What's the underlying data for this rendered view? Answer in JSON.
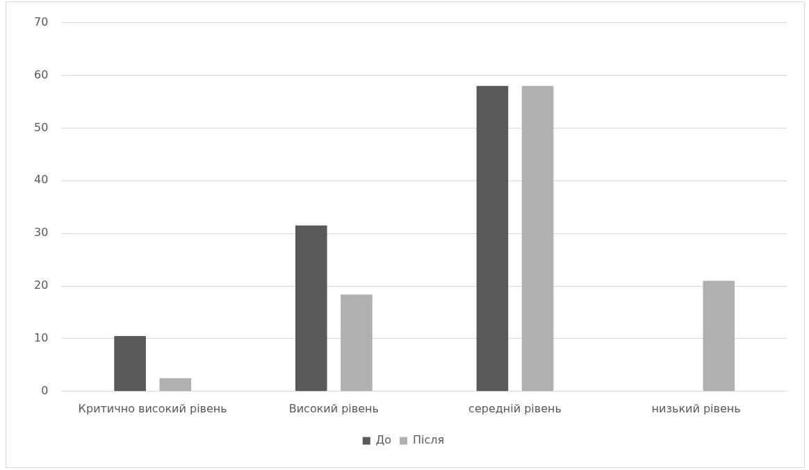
{
  "chart_data": {
    "type": "bar",
    "categories": [
      "Критично високий рівень",
      "Високий рівень",
      "середній рівень",
      "низький рівень"
    ],
    "series": [
      {
        "name": "До",
        "color": "#595959",
        "values": [
          10.5,
          31.5,
          58,
          0
        ]
      },
      {
        "name": "Після",
        "color": "#b0b0b0",
        "values": [
          2.5,
          18.4,
          58,
          21
        ]
      }
    ],
    "ylim": [
      0,
      70
    ],
    "yticks": [
      0,
      10,
      20,
      30,
      40,
      50,
      60,
      70
    ],
    "grid": "y",
    "legend": "bottom"
  }
}
